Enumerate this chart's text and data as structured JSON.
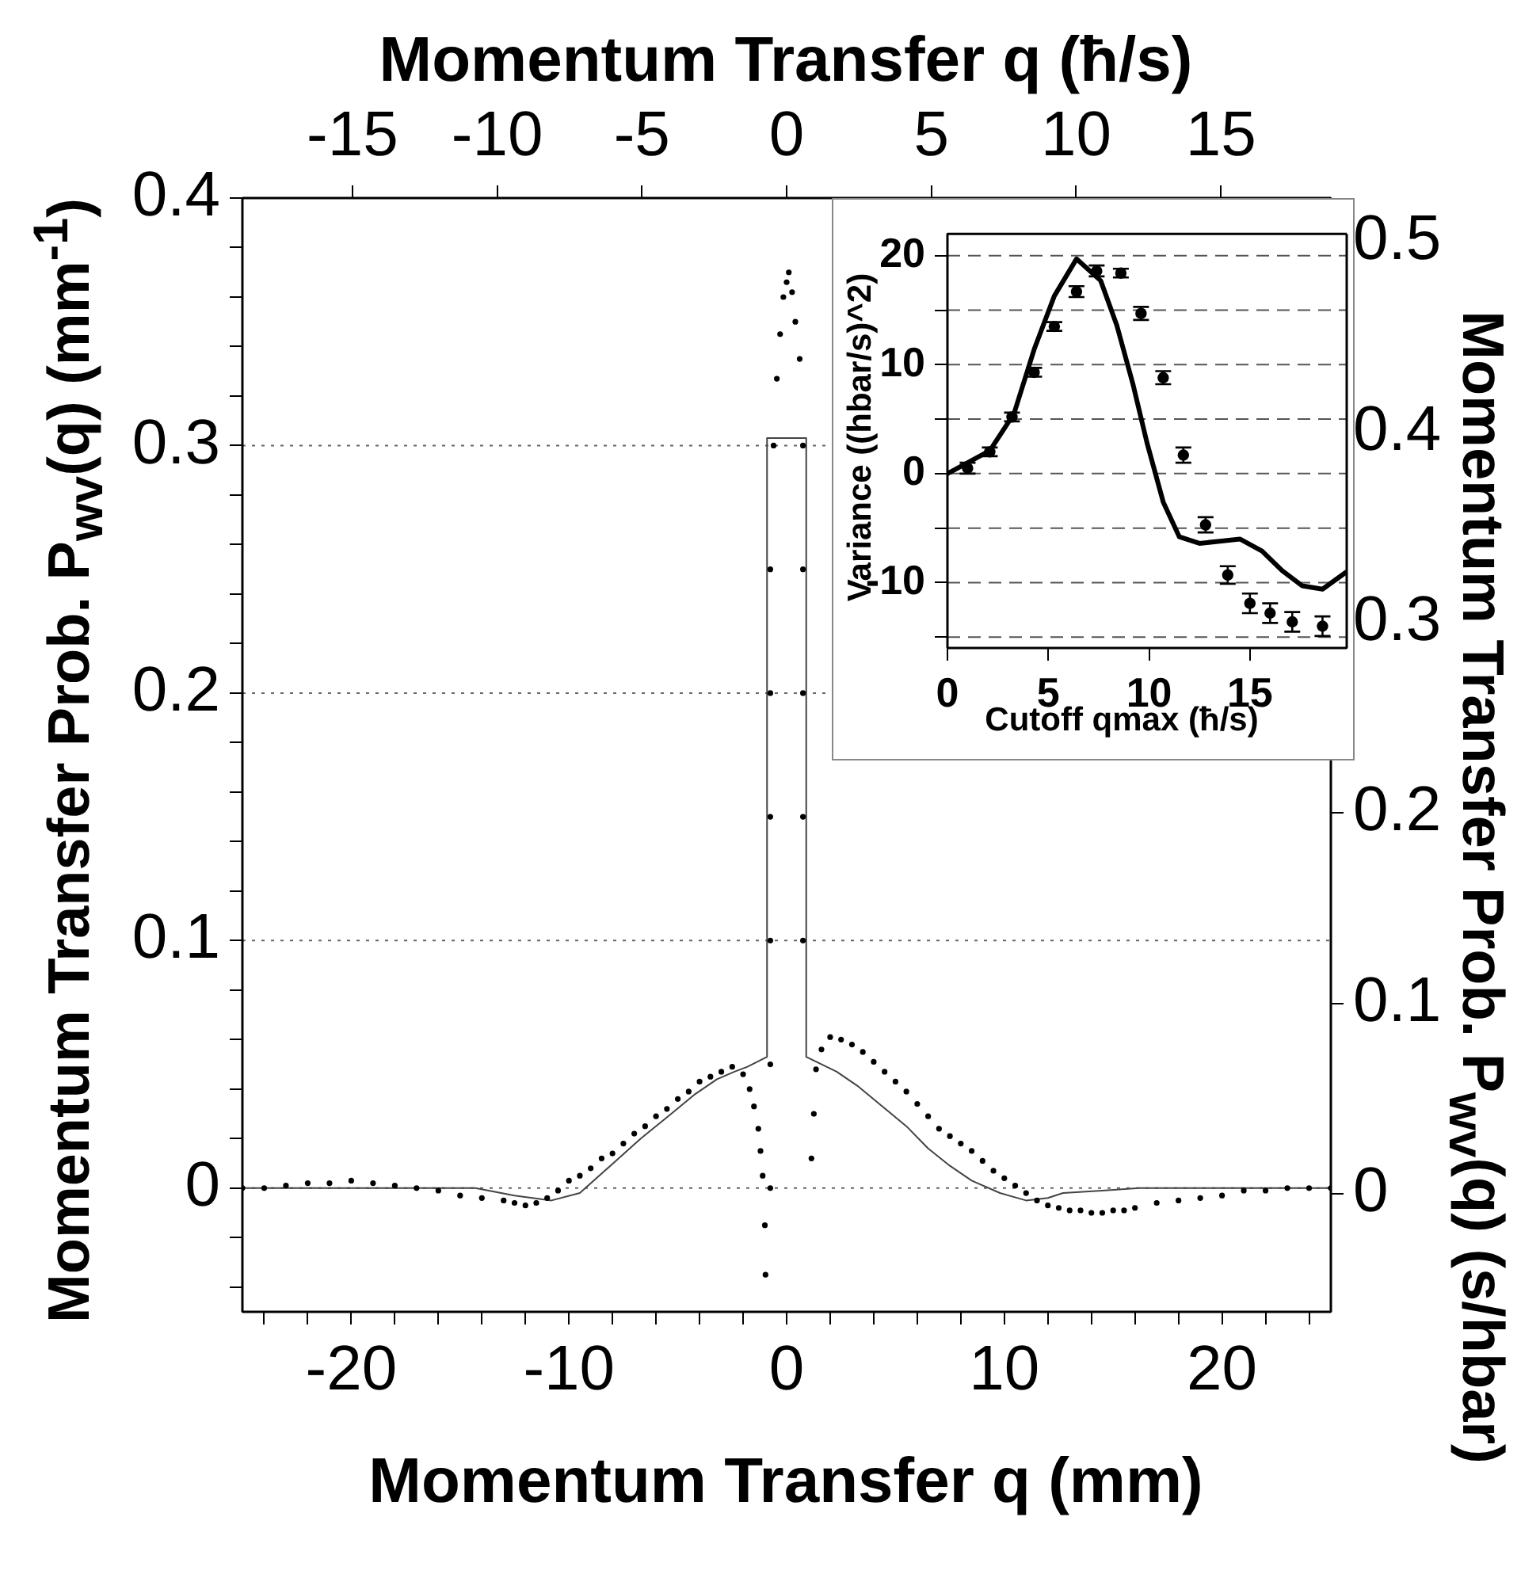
{
  "chart_data": [
    {
      "type": "scatter",
      "xlabel": "Momentum Transfer q (mm)",
      "x2label": "Momentum Transfer q (ħ/s)",
      "ylabel": "Momentum Transfer Prob. P$_{wv}$(q) (mm$^{-1}$)",
      "y2label": "Momentum Transfer Prob. P$_{wv}$(q) (s/hbar)",
      "xlim": [
        -25,
        25
      ],
      "xticks": [
        {
          "value": -24,
          "label": null
        },
        {
          "value": -22,
          "label": null
        },
        -20,
        {
          "value": -18,
          "label": null
        },
        {
          "value": -16,
          "label": null
        },
        {
          "value": -14,
          "label": null
        },
        {
          "value": -12,
          "label": null
        },
        -10,
        {
          "value": -8,
          "label": null
        },
        {
          "value": -6,
          "label": null
        },
        {
          "value": -4,
          "label": null
        },
        {
          "value": -2,
          "label": null
        },
        0,
        {
          "value": 2,
          "label": null
        },
        {
          "value": 4,
          "label": null
        },
        {
          "value": 6,
          "label": null
        },
        {
          "value": 8,
          "label": null
        },
        10,
        {
          "value": 12,
          "label": null
        },
        {
          "value": 14,
          "label": null
        },
        {
          "value": 16,
          "label": null
        },
        {
          "value": 18,
          "label": null
        },
        20,
        {
          "value": 22,
          "label": null
        },
        {
          "value": 24,
          "label": null
        }
      ],
      "x2lim": [
        -18.8,
        18.8
      ],
      "x2ticks": [
        -15,
        -10,
        -5,
        0,
        5,
        10,
        15
      ],
      "ylim": [
        -0.05,
        0.4
      ],
      "yticks": [
        {
          "value": -0.04,
          "label": null
        },
        {
          "value": -0.02,
          "label": null
        },
        0,
        {
          "value": 0.02,
          "label": null
        },
        {
          "value": 0.04,
          "label": null
        },
        {
          "value": 0.06,
          "label": null
        },
        {
          "value": 0.08,
          "label": null
        },
        0.1,
        {
          "value": 0.12,
          "label": null
        },
        {
          "value": 0.14,
          "label": null
        },
        {
          "value": 0.16,
          "label": null
        },
        {
          "value": 0.18,
          "label": null
        },
        0.2,
        {
          "value": 0.22,
          "label": null
        },
        {
          "value": 0.24,
          "label": null
        },
        {
          "value": 0.26,
          "label": null
        },
        {
          "value": 0.28,
          "label": null
        },
        0.3,
        {
          "value": 0.32,
          "label": null
        },
        {
          "value": 0.34,
          "label": null
        },
        {
          "value": 0.36,
          "label": null
        },
        {
          "value": 0.38,
          "label": null
        },
        0.4
      ],
      "y2lim": [
        -0.062,
        0.523
      ],
      "y2ticks": [
        0,
        0.1,
        0.2,
        0.3,
        0.4,
        0.5
      ],
      "grid": "y",
      "series": [
        {
          "type": "line",
          "marker": "none",
          "color": "#444444",
          "x": [
            -25,
            -14.3,
            -12.5,
            -10.8,
            -9.5,
            -8.1,
            -6.7,
            -5.3,
            -4.2,
            -3.2,
            -2.4,
            -1.8,
            -0.9,
            -0.9,
            0.9,
            0.9,
            2.3,
            3.3,
            4.4,
            5.5,
            6.5,
            7.5,
            8.5,
            9.8,
            11,
            12,
            12.7,
            14.5,
            16.2,
            25
          ],
          "values": [
            0,
            0,
            -0.003,
            -0.005,
            -0.002,
            0.009,
            0.02,
            0.03,
            0.038,
            0.044,
            0.047,
            0.049,
            0.053,
            0.303,
            0.303,
            0.053,
            0.047,
            0.041,
            0.033,
            0.025,
            0.016,
            0.009,
            0.003,
            -0.002,
            -0.005,
            -0.004,
            -0.002,
            -0.001,
            0,
            0
          ]
        },
        {
          "type": "scatter",
          "marker": "circle",
          "color": "#000000",
          "x": [
            -25,
            -24,
            -23,
            -22,
            -21,
            -20,
            -19,
            -18,
            -17,
            -16,
            -15,
            -14,
            -13,
            -12.5,
            -12,
            -11.5,
            -11,
            -10.5,
            -10,
            -9.5,
            -9,
            -8.5,
            -8,
            -7.5,
            -7,
            -6.5,
            -6,
            -5.5,
            -5,
            -4.5,
            -4,
            -3.5,
            -3,
            -2.5,
            -2,
            -1.7,
            -1.5,
            -1.3,
            -1.2,
            -1.1,
            -1,
            -0.97,
            -0.75,
            -0.75,
            -0.75,
            -0.75,
            -0.75,
            -0.75,
            -0.6,
            -0.45,
            -0.3,
            -0.15,
            0,
            0.1,
            0.25,
            0.4,
            0.6,
            0.75,
            0.75,
            0.75,
            0.75,
            0.75,
            1.14,
            1.25,
            1.35,
            1.6,
            2,
            2.5,
            3,
            3.5,
            4,
            4.5,
            5,
            5.5,
            6,
            6.5,
            7,
            7.5,
            8,
            8.5,
            9,
            9.5,
            10,
            10.5,
            11,
            11.5,
            12,
            12.5,
            13,
            13.5,
            14,
            14.5,
            15,
            15.5,
            16,
            17,
            18,
            19,
            20,
            21,
            22,
            23,
            24,
            25
          ],
          "values": [
            0,
            0,
            0.001,
            0.002,
            0.002,
            0.003,
            0.002,
            0.001,
            0,
            -0.001,
            -0.003,
            -0.004,
            -0.005,
            -0.006,
            -0.007,
            -0.006,
            -0.004,
            -0.001,
            0.003,
            0.005,
            0.008,
            0.012,
            0.014,
            0.018,
            0.022,
            0.025,
            0.029,
            0.032,
            0.036,
            0.039,
            0.043,
            0.045,
            0.047,
            0.049,
            0.046,
            0.04,
            0.033,
            0.024,
            0.015,
            0.005,
            -0.015,
            -0.035,
            0,
            0.05,
            0.1,
            0.15,
            0.2,
            0.25,
            0.3,
            0.327,
            0.345,
            0.36,
            0.366,
            0.37,
            0.362,
            0.35,
            0.335,
            0.3,
            0.25,
            0.2,
            0.15,
            0.1,
            0.012,
            0.03,
            0.048,
            0.056,
            0.061,
            0.06,
            0.058,
            0.055,
            0.051,
            0.047,
            0.043,
            0.039,
            0.034,
            0.029,
            0.024,
            0.021,
            0.018,
            0.015,
            0.011,
            0.007,
            0.004,
            0.001,
            -0.002,
            -0.005,
            -0.007,
            -0.008,
            -0.009,
            -0.009,
            -0.01,
            -0.01,
            -0.009,
            -0.009,
            -0.008,
            -0.006,
            -0.005,
            -0.004,
            -0.003,
            -0.001,
            -0.001,
            0,
            0,
            0
          ]
        }
      ]
    },
    {
      "type": "scatter",
      "xlabel": "Cutoff qmax (ħ/s)",
      "ylabel": "Variance ((hbar/s)^2)",
      "xlim": [
        0,
        19.8
      ],
      "xticks": [
        0,
        5,
        10,
        15
      ],
      "ylim": [
        -16,
        22
      ],
      "yticks": [
        {
          "value": -15,
          "label": null
        },
        -10,
        {
          "value": -5,
          "label": null
        },
        0,
        {
          "value": 5,
          "label": null
        },
        10,
        {
          "value": 15,
          "label": null
        },
        20
      ],
      "grid": "y",
      "series": [
        {
          "type": "line",
          "marker": "none",
          "color": "#000000",
          "x": [
            0,
            1,
            2.1,
            3.3,
            4.3,
            5.3,
            6.4,
            7.6,
            8.4,
            9.2,
            9.9,
            10.7,
            11.5,
            12.5,
            13.5,
            14.5,
            15.6,
            16.6,
            17.6,
            18.6,
            19.8
          ],
          "values": [
            0,
            1,
            2.1,
            5.5,
            11.4,
            16.3,
            19.7,
            17.7,
            13.6,
            8.2,
            2.8,
            -2.6,
            -5.8,
            -6.4,
            -6.2,
            -6,
            -7.1,
            -8.9,
            -10.3,
            -10.6,
            -9
          ]
        },
        {
          "type": "scatter",
          "marker": "circle",
          "color": "#000000",
          "x": [
            1,
            2.1,
            3.2,
            4.3,
            5.3,
            6.4,
            7.4,
            8.6,
            9.6,
            10.7,
            11.7,
            12.8,
            13.9,
            15,
            16,
            17.1,
            18.6
          ],
          "values": [
            0.5,
            2,
            5.2,
            9.3,
            13.5,
            16.7,
            18.6,
            18.4,
            14.7,
            8.8,
            1.7,
            -4.7,
            -9.3,
            -11.9,
            -12.8,
            -13.6,
            -14
          ],
          "errors": [
            0.5,
            0.4,
            0.4,
            0.4,
            0.4,
            0.5,
            0.5,
            0.4,
            0.6,
            0.6,
            0.7,
            0.7,
            0.8,
            0.9,
            0.9,
            0.9,
            0.9
          ]
        }
      ]
    }
  ]
}
